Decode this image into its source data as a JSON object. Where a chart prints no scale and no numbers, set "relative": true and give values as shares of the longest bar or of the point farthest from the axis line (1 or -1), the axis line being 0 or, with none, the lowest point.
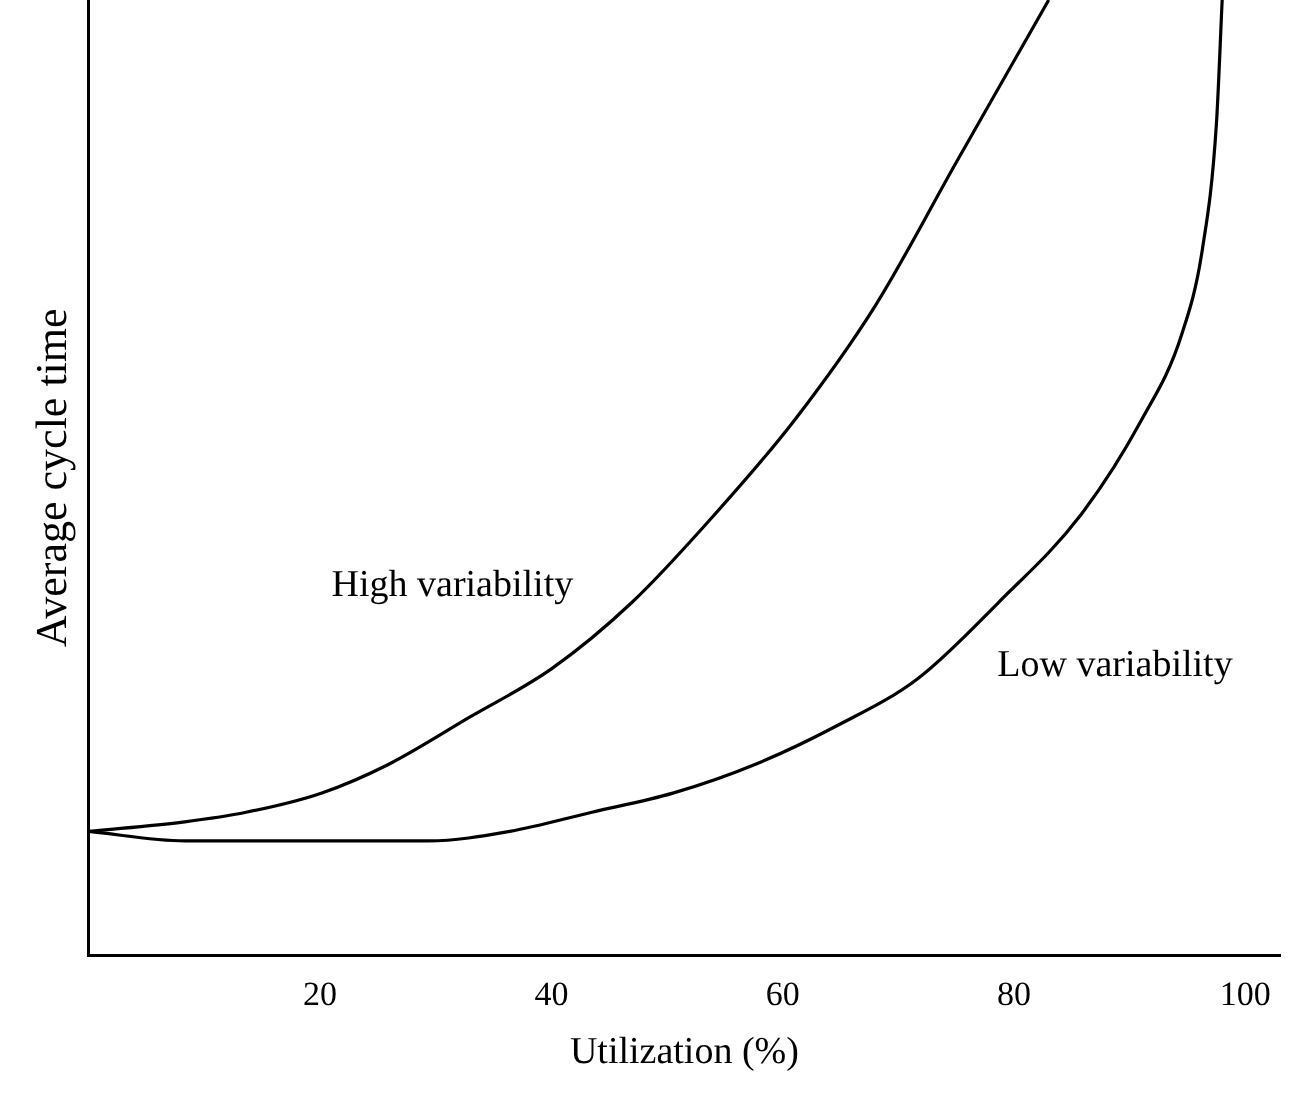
{
  "chart_data": {
    "type": "line",
    "relative": true,
    "xlabel": "Utilization (%)",
    "ylabel": "Average cycle time",
    "xlim": [
      0,
      103
    ],
    "xticks": [
      20,
      40,
      60,
      80,
      100
    ],
    "grid": false,
    "legend": false,
    "marker": "none",
    "line_style": "solid",
    "series": [
      {
        "name": "High variability",
        "color": "#000000",
        "x": [
          0,
          8.3,
          13.6,
          20.1,
          25.9,
          33,
          40,
          47,
          54,
          61,
          68,
          75,
          83
        ],
        "values": [
          0.13,
          0.14,
          0.15,
          0.17,
          0.2,
          0.25,
          0.3,
          0.37,
          0.46,
          0.56,
          0.68,
          0.83,
          1
        ]
      },
      {
        "name": "Low variability",
        "color": "#000000",
        "x": [
          0,
          8.3,
          19.7,
          29.4,
          36.4,
          43.5,
          50.5,
          57.6,
          64.6,
          71.7,
          78.7,
          85.7,
          91,
          94.5,
          96.3,
          97.5,
          98
        ],
        "values": [
          0.13,
          0.12,
          0.12,
          0.12,
          0.13,
          0.15,
          0.17,
          0.2,
          0.24,
          0.29,
          0.37,
          0.46,
          0.56,
          0.65,
          0.74,
          0.87,
          1
        ]
      }
    ]
  }
}
